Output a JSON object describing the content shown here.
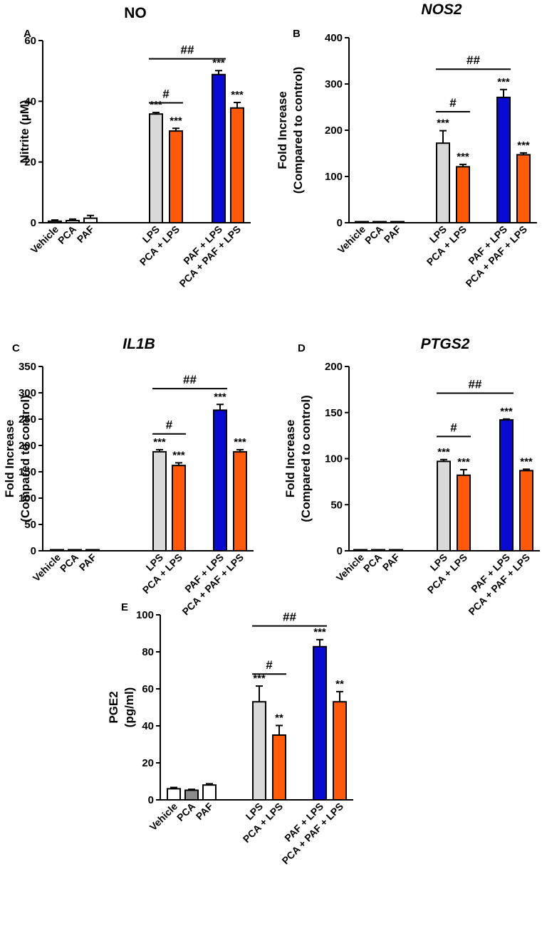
{
  "figure": {
    "categories": [
      "Vehicle",
      "PCA",
      "PAF",
      "LPS",
      "PCA + LPS",
      "PAF + LPS",
      "PCA + PAF + LPS"
    ],
    "colors": {
      "white": "#ffffff",
      "gray": "#d9d9d9",
      "dark_gray": "#8c8c8c",
      "blue": "#0a0ad0",
      "orange": "#ff5a0a",
      "black": "#000000"
    }
  },
  "chart_data": [
    {
      "panel": "A",
      "type": "bar",
      "title": "NO",
      "title_italic": false,
      "ylabel": [
        "Nitrite (µM)"
      ],
      "ylim": [
        0,
        60
      ],
      "yticks": [
        0,
        20,
        40,
        60
      ],
      "values": [
        0.5,
        0.7,
        1.5,
        35.8,
        30.2,
        48.8,
        37.8
      ],
      "errors": [
        0.4,
        0.5,
        0.9,
        0.5,
        0.9,
        1.3,
        1.8
      ],
      "bar_colors": [
        "white",
        "white",
        "white",
        "gray",
        "orange",
        "blue",
        "orange"
      ],
      "significance": [
        "",
        "",
        "",
        "***",
        "***",
        "***",
        "***"
      ],
      "comparisons": [
        {
          "from": 3,
          "to": 4,
          "label": "#",
          "y": 39.5
        },
        {
          "from": 3,
          "to": 5,
          "label": "##",
          "y": 54
        }
      ]
    },
    {
      "panel": "B",
      "type": "bar",
      "title": "NOS2",
      "title_italic": true,
      "ylabel": [
        "Fold Increase",
        "(Compared to control)"
      ],
      "ylim": [
        0,
        400
      ],
      "yticks": [
        0,
        100,
        200,
        300,
        400
      ],
      "values": [
        1,
        1,
        1,
        172,
        121,
        271,
        147
      ],
      "errors": [
        0.5,
        0.5,
        0.5,
        27,
        5,
        17,
        4
      ],
      "bar_colors": [
        "white",
        "white",
        "white",
        "gray",
        "orange",
        "blue",
        "orange"
      ],
      "significance": [
        "",
        "",
        "",
        "***",
        "***",
        "***",
        "***"
      ],
      "comparisons": [
        {
          "from": 3,
          "to": 4,
          "label": "#",
          "y": 240
        },
        {
          "from": 3,
          "to": 5,
          "label": "##",
          "y": 332
        }
      ]
    },
    {
      "panel": "C",
      "type": "bar",
      "title": "IL1B",
      "title_italic": true,
      "ylabel": [
        "Fold Increase",
        "(Compared to control)"
      ],
      "ylim": [
        0,
        350
      ],
      "yticks": [
        0,
        50,
        100,
        150,
        200,
        250,
        300,
        350
      ],
      "values": [
        1,
        1,
        1,
        188,
        162,
        267,
        188
      ],
      "errors": [
        0.5,
        0.5,
        0.5,
        4,
        5,
        11,
        4
      ],
      "bar_colors": [
        "white",
        "white",
        "white",
        "gray",
        "orange",
        "blue",
        "orange"
      ],
      "significance": [
        "",
        "",
        "",
        "***",
        "***",
        "***",
        "***"
      ],
      "comparisons": [
        {
          "from": 3,
          "to": 4,
          "label": "#",
          "y": 222
        },
        {
          "from": 3,
          "to": 5,
          "label": "##",
          "y": 308
        }
      ]
    },
    {
      "panel": "D",
      "type": "bar",
      "title": "PTGS2",
      "title_italic": true,
      "ylabel": [
        "Fold Increase",
        "(Compared to control)"
      ],
      "ylim": [
        0,
        200
      ],
      "yticks": [
        0,
        50,
        100,
        150,
        200
      ],
      "values": [
        0.5,
        0.5,
        0.5,
        97,
        82,
        142,
        87
      ],
      "errors": [
        0.3,
        0.3,
        0.3,
        2,
        6,
        1,
        1.5
      ],
      "bar_colors": [
        "white",
        "white",
        "white",
        "gray",
        "orange",
        "blue",
        "orange"
      ],
      "significance": [
        "",
        "",
        "",
        "***",
        "***",
        "***",
        "***"
      ],
      "comparisons": [
        {
          "from": 3,
          "to": 4,
          "label": "#",
          "y": 124
        },
        {
          "from": 3,
          "to": 5,
          "label": "##",
          "y": 171
        }
      ]
    },
    {
      "panel": "E",
      "type": "bar",
      "title": "",
      "title_italic": false,
      "ylabel": [
        "PGE2",
        "(pg/ml)"
      ],
      "ylim": [
        0,
        100
      ],
      "yticks": [
        0,
        20,
        40,
        60,
        80,
        100
      ],
      "values": [
        6,
        5.2,
        8,
        53,
        35,
        82.8,
        53
      ],
      "errors": [
        0.7,
        0.5,
        0.7,
        8.5,
        5.2,
        3.8,
        5.5
      ],
      "bar_colors": [
        "white",
        "dark_gray",
        "white",
        "gray",
        "orange",
        "blue",
        "orange"
      ],
      "significance": [
        "",
        "",
        "",
        "***",
        "**",
        "***",
        "**"
      ],
      "comparisons": [
        {
          "from": 3,
          "to": 4,
          "label": "#",
          "y": 68
        },
        {
          "from": 3,
          "to": 5,
          "label": "##",
          "y": 94
        }
      ]
    }
  ]
}
